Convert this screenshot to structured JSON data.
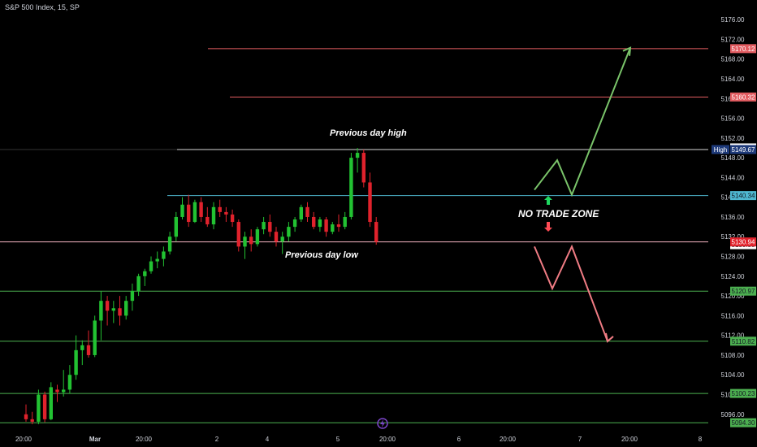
{
  "header": {
    "title": "S&P 500 Index, 15, SP"
  },
  "annotations": {
    "prev_day_high": "Previous day high",
    "prev_day_low": "Previous day low",
    "no_trade_zone": "NO TRADE ZONE",
    "high_tag": "High",
    "event_icon": "lightning-icon"
  },
  "colors": {
    "background": "#000000",
    "up_candle": "#22c232",
    "down_candle": "#e0222c",
    "resistance": "#e25c61",
    "support": "#4caf50",
    "mid_line": "#4fb8d1",
    "high_line": "#d9d9d9",
    "low_line": "#f6b4c2",
    "axis_text": "#d1d4dc",
    "up_arrow": "#7ac46a",
    "down_arrow": "#f07c84",
    "zone_up_marker": "#1ed760",
    "zone_down_marker": "#ff4b55",
    "high_badge": "#1e3a7a",
    "event_badge": "#7b45c9"
  },
  "chart_data": {
    "type": "candlestick",
    "title": "S&P 500 Index, 15, SP",
    "ylim": [
      5093,
      5178
    ],
    "y_ticks": [
      "5176.00",
      "5172.00",
      "5168.00",
      "5164.00",
      "5160.00",
      "5156.00",
      "5152.00",
      "5148.00",
      "5144.00",
      "5140.00",
      "5136.00",
      "5132.00",
      "5128.00",
      "5124.00",
      "5120.00",
      "5116.00",
      "5112.00",
      "5108.00",
      "5104.00",
      "5100.00",
      "5096.00"
    ],
    "x_ticks": [
      "20:00",
      "Mar",
      "20:00",
      "2",
      "4",
      "5",
      "20:00",
      "6",
      "20:00",
      "7",
      "20:00",
      "8"
    ],
    "price_levels": [
      {
        "value": 5170.12,
        "label": "5170.12",
        "role": "resistance"
      },
      {
        "value": 5160.32,
        "label": "5160.32",
        "role": "resistance"
      },
      {
        "value": 5149.67,
        "label": "5149.67",
        "role": "high"
      },
      {
        "value": 5140.34,
        "label": "5140.34",
        "role": "mid"
      },
      {
        "value": 5130.94,
        "label": "5130.94",
        "role": "current"
      },
      {
        "value": 5120.97,
        "label": "5120.97",
        "role": "support"
      },
      {
        "value": 5110.82,
        "label": "5110.82",
        "role": "support"
      },
      {
        "value": 5100.23,
        "label": "5100.23",
        "role": "support"
      },
      {
        "value": 5094.3,
        "label": "5094.30",
        "role": "support"
      }
    ],
    "extra_axis_labels": [
      {
        "value": 5150.0,
        "label": "5150.00"
      },
      {
        "value": 5130.38,
        "label": "5130.38"
      }
    ],
    "candles": [
      {
        "o": 5096.0,
        "h": 5098.0,
        "l": 5094.5,
        "c": 5095.0
      },
      {
        "o": 5095.0,
        "h": 5096.5,
        "l": 5094.0,
        "c": 5094.5
      },
      {
        "o": 5094.5,
        "h": 5101.0,
        "l": 5094.0,
        "c": 5100.0
      },
      {
        "o": 5100.0,
        "h": 5100.6,
        "l": 5094.4,
        "c": 5095.0
      },
      {
        "o": 5095.0,
        "h": 5102.5,
        "l": 5094.8,
        "c": 5101.5
      },
      {
        "o": 5101.0,
        "h": 5102.0,
        "l": 5098.5,
        "c": 5100.5
      },
      {
        "o": 5100.5,
        "h": 5105.0,
        "l": 5099.6,
        "c": 5101.0
      },
      {
        "o": 5101.0,
        "h": 5106.0,
        "l": 5100.2,
        "c": 5104.0
      },
      {
        "o": 5104.0,
        "h": 5112.0,
        "l": 5103.0,
        "c": 5109.0
      },
      {
        "o": 5109.0,
        "h": 5111.0,
        "l": 5106.0,
        "c": 5110.0
      },
      {
        "o": 5110.0,
        "h": 5113.0,
        "l": 5107.5,
        "c": 5108.0
      },
      {
        "o": 5108.0,
        "h": 5116.0,
        "l": 5107.6,
        "c": 5115.0
      },
      {
        "o": 5115.0,
        "h": 5121.0,
        "l": 5111.0,
        "c": 5119.0
      },
      {
        "o": 5119.0,
        "h": 5120.0,
        "l": 5114.0,
        "c": 5117.0
      },
      {
        "o": 5117.0,
        "h": 5119.0,
        "l": 5114.5,
        "c": 5117.5
      },
      {
        "o": 5117.5,
        "h": 5120.0,
        "l": 5114.0,
        "c": 5116.0
      },
      {
        "o": 5116.0,
        "h": 5120.0,
        "l": 5115.2,
        "c": 5119.0
      },
      {
        "o": 5119.0,
        "h": 5122.5,
        "l": 5117.0,
        "c": 5121.0
      },
      {
        "o": 5121.0,
        "h": 5124.5,
        "l": 5120.0,
        "c": 5124.0
      },
      {
        "o": 5124.0,
        "h": 5125.5,
        "l": 5122.0,
        "c": 5125.0
      },
      {
        "o": 5125.0,
        "h": 5128.0,
        "l": 5124.5,
        "c": 5127.0
      },
      {
        "o": 5127.0,
        "h": 5129.0,
        "l": 5125.6,
        "c": 5127.5
      },
      {
        "o": 5127.5,
        "h": 5130.0,
        "l": 5126.0,
        "c": 5129.0
      },
      {
        "o": 5129.0,
        "h": 5133.0,
        "l": 5128.4,
        "c": 5132.0
      },
      {
        "o": 5132.0,
        "h": 5137.0,
        "l": 5131.0,
        "c": 5136.0
      },
      {
        "o": 5136.0,
        "h": 5140.0,
        "l": 5135.5,
        "c": 5138.5
      },
      {
        "o": 5138.5,
        "h": 5140.5,
        "l": 5134.0,
        "c": 5135.0
      },
      {
        "o": 5135.0,
        "h": 5139.5,
        "l": 5134.8,
        "c": 5139.0
      },
      {
        "o": 5139.0,
        "h": 5140.0,
        "l": 5135.0,
        "c": 5136.0
      },
      {
        "o": 5136.0,
        "h": 5138.0,
        "l": 5134.0,
        "c": 5134.5
      },
      {
        "o": 5134.5,
        "h": 5139.0,
        "l": 5133.5,
        "c": 5138.0
      },
      {
        "o": 5138.0,
        "h": 5139.5,
        "l": 5136.0,
        "c": 5137.0
      },
      {
        "o": 5137.0,
        "h": 5138.0,
        "l": 5135.0,
        "c": 5136.5
      },
      {
        "o": 5136.5,
        "h": 5137.5,
        "l": 5134.0,
        "c": 5135.0
      },
      {
        "o": 5135.0,
        "h": 5135.5,
        "l": 5129.0,
        "c": 5130.0
      },
      {
        "o": 5130.0,
        "h": 5133.0,
        "l": 5127.5,
        "c": 5132.0
      },
      {
        "o": 5132.0,
        "h": 5133.5,
        "l": 5129.0,
        "c": 5130.5
      },
      {
        "o": 5130.5,
        "h": 5134.0,
        "l": 5130.0,
        "c": 5133.5
      },
      {
        "o": 5133.5,
        "h": 5136.0,
        "l": 5132.5,
        "c": 5135.0
      },
      {
        "o": 5135.0,
        "h": 5136.5,
        "l": 5132.0,
        "c": 5133.0
      },
      {
        "o": 5133.0,
        "h": 5134.0,
        "l": 5130.0,
        "c": 5131.0
      },
      {
        "o": 5131.0,
        "h": 5133.0,
        "l": 5128.5,
        "c": 5132.0
      },
      {
        "o": 5132.0,
        "h": 5135.0,
        "l": 5131.0,
        "c": 5134.0
      },
      {
        "o": 5134.0,
        "h": 5136.0,
        "l": 5133.0,
        "c": 5135.5
      },
      {
        "o": 5135.5,
        "h": 5138.5,
        "l": 5135.0,
        "c": 5138.0
      },
      {
        "o": 5138.0,
        "h": 5139.0,
        "l": 5135.0,
        "c": 5136.0
      },
      {
        "o": 5136.0,
        "h": 5137.0,
        "l": 5133.5,
        "c": 5134.0
      },
      {
        "o": 5134.0,
        "h": 5136.0,
        "l": 5133.0,
        "c": 5135.5
      },
      {
        "o": 5135.5,
        "h": 5136.0,
        "l": 5132.0,
        "c": 5133.0
      },
      {
        "o": 5133.0,
        "h": 5135.0,
        "l": 5132.5,
        "c": 5134.5
      },
      {
        "o": 5134.5,
        "h": 5136.5,
        "l": 5133.0,
        "c": 5134.0
      },
      {
        "o": 5134.0,
        "h": 5137.0,
        "l": 5133.5,
        "c": 5136.0
      },
      {
        "o": 5136.0,
        "h": 5149.0,
        "l": 5135.5,
        "c": 5148.0
      },
      {
        "o": 5148.0,
        "h": 5150.0,
        "l": 5145.0,
        "c": 5149.0
      },
      {
        "o": 5149.0,
        "h": 5149.67,
        "l": 5142.0,
        "c": 5143.0
      },
      {
        "o": 5143.0,
        "h": 5145.0,
        "l": 5134.0,
        "c": 5135.0
      },
      {
        "o": 5135.0,
        "h": 5136.0,
        "l": 5130.38,
        "c": 5130.94
      }
    ],
    "projection_up": [
      {
        "step": 0,
        "value": 5141.5
      },
      {
        "step": 1,
        "value": 5147.5
      },
      {
        "step": 2,
        "value": 5140.5
      },
      {
        "step": 3,
        "value": 5170.3
      }
    ],
    "projection_down": [
      {
        "step": 0,
        "value": 5130.0
      },
      {
        "step": 1,
        "value": 5121.5
      },
      {
        "step": 2,
        "value": 5130.0
      },
      {
        "step": 3,
        "value": 5110.8
      }
    ]
  }
}
